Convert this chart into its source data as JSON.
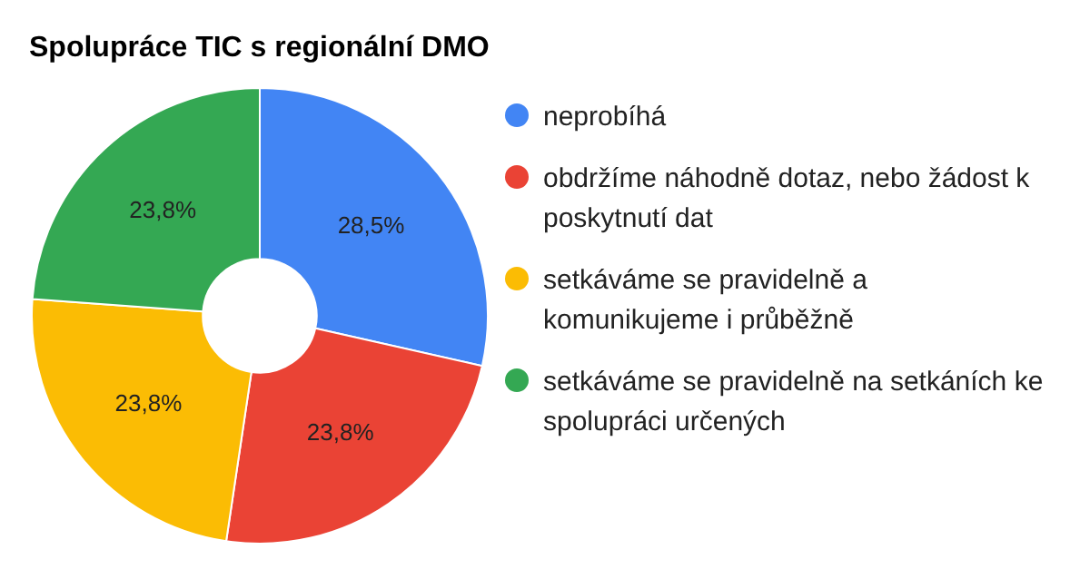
{
  "chart_data": {
    "type": "donut",
    "title": "Spolupráce TIC s regionální DMO",
    "categories": [
      "neprobíhá",
      "obdržíme náhodně dotaz, nebo žádost k poskytnutí dat",
      "setkáváme se pravidelně a komunikujeme i průběžně",
      "setkáváme se pravidelně na setkáních ke spolupráci určených"
    ],
    "values": [
      28.5,
      23.8,
      23.8,
      23.8
    ],
    "colors": [
      "#4285f4",
      "#ea4335",
      "#fbbc04",
      "#34a853"
    ],
    "value_labels": [
      "28,5%",
      "23,8%",
      "23,8%",
      "23,8%"
    ],
    "legend": "right"
  }
}
